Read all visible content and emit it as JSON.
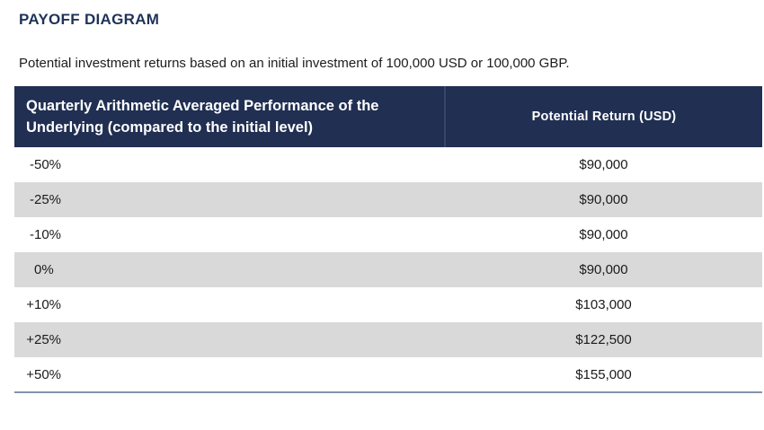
{
  "header": {
    "title": "PAYOFF DIAGRAM",
    "subtitle": "Potential investment returns based on an initial investment of 100,000 USD or 100,000 GBP."
  },
  "table": {
    "columns": [
      {
        "label": "Quarterly Arithmetic Averaged Performance of the Underlying (compared to the initial level)"
      },
      {
        "label": "Potential Return (USD)"
      }
    ],
    "rows": [
      {
        "sign": "-",
        "pct": "50%",
        "return": "$90,000"
      },
      {
        "sign": "-",
        "pct": "25%",
        "return": "$90,000"
      },
      {
        "sign": "-",
        "pct": "10%",
        "return": "$90,000"
      },
      {
        "sign": "",
        "pct": "0%",
        "return": "$90,000"
      },
      {
        "sign": "+",
        "pct": "10%",
        "return": "$103,000"
      },
      {
        "sign": "+",
        "pct": "25%",
        "return": "$122,500"
      },
      {
        "sign": "+",
        "pct": "50%",
        "return": "$155,000"
      }
    ]
  },
  "colors": {
    "title_text": "#1f3357",
    "header_bg": "#202f52",
    "header_text": "#ffffff",
    "header_divider": "#35466d",
    "stripe_row_bg": "#d9d9d9",
    "bottom_border": "#8493ad",
    "body_text": "#1b1b1b"
  }
}
